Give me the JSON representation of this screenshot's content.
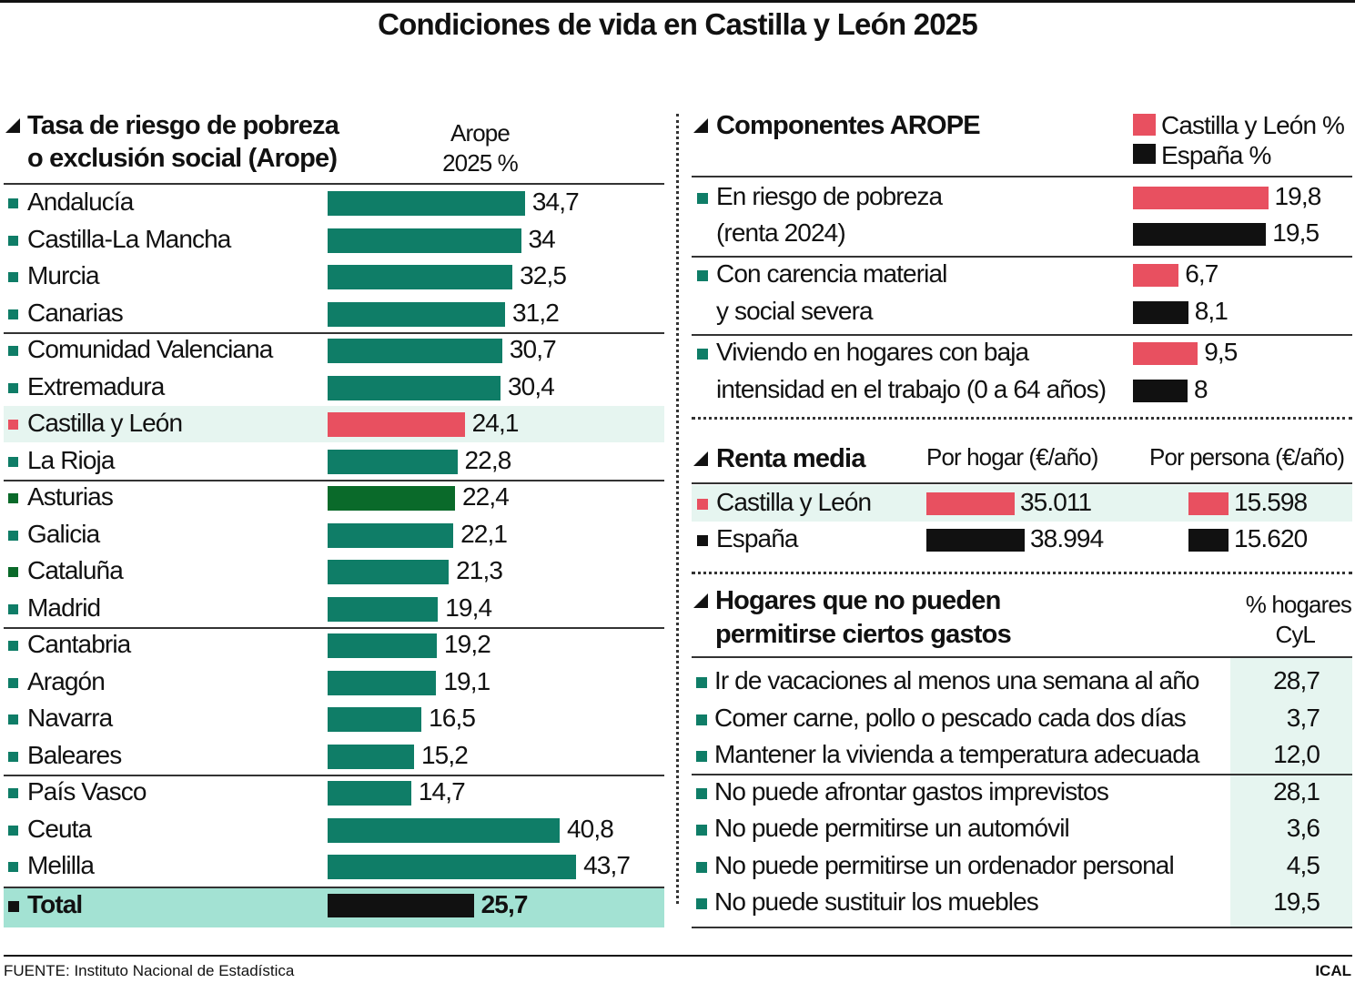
{
  "title": "Condiciones de vida en Castilla y León 2025",
  "colors": {
    "teal": "#0f7d67",
    "red": "#e85060",
    "dark_green": "#0a6a2a",
    "black": "#111111",
    "highlight": "#e6f5f0",
    "total_bg": "#a3e2d3"
  },
  "chart_data": [
    {
      "type": "bar",
      "title": "Tasa de riesgo de pobreza o exclusión social (Arope)",
      "column_header": "Arope 2025 %",
      "categories": [
        "Andalucía",
        "Castilla-La Mancha",
        "Murcia",
        "Canarias",
        "Comunidad Valenciana",
        "Extremadura",
        "Castilla y León",
        "La Rioja",
        "Asturias",
        "Galicia",
        "Cataluña",
        "Madrid",
        "Cantabria",
        "Aragón",
        "Navarra",
        "Baleares",
        "País Vasco",
        "Ceuta",
        "Melilla"
      ],
      "labels": [
        "34,7",
        "34",
        "32,5",
        "31,2",
        "30,7",
        "30,4",
        "24,1",
        "22,8",
        "22,4",
        "22,1",
        "21,3",
        "19,4",
        "19,2",
        "19,1",
        "16,5",
        "15,2",
        "14,7",
        "40,8",
        "43,7"
      ],
      "values": [
        34.7,
        34,
        32.5,
        31.2,
        30.7,
        30.4,
        24.1,
        22.8,
        22.4,
        22.1,
        21.3,
        19.4,
        19.2,
        19.1,
        16.5,
        15.2,
        14.7,
        40.8,
        43.7
      ],
      "highlight": "Castilla y León",
      "total": {
        "label": "Total",
        "value": 25.7,
        "text": "25,7"
      }
    },
    {
      "type": "bar",
      "title": "Componentes AROPE",
      "legend": [
        "Castilla y León %",
        "España %"
      ],
      "categories": [
        [
          "En riesgo de pobreza",
          "(renta 2024)"
        ],
        [
          "Con carencia material",
          "y social severa"
        ],
        [
          "Viviendo en hogares con baja",
          "intensidad en el trabajo (0 a 64 años)"
        ]
      ],
      "series": [
        {
          "name": "Castilla y León %",
          "values": [
            19.8,
            6.7,
            9.5
          ],
          "labels": [
            "19,8",
            "6,7",
            "9,5"
          ]
        },
        {
          "name": "España %",
          "values": [
            19.5,
            8.1,
            8
          ],
          "labels": [
            "19,5",
            "8,1",
            "8"
          ]
        }
      ]
    },
    {
      "type": "bar",
      "title": "Renta media",
      "columns": [
        "Por hogar (€/año)",
        "Por persona (€/año)"
      ],
      "categories": [
        "Castilla y León",
        "España"
      ],
      "por_hogar": [
        35011,
        38994
      ],
      "por_hogar_labels": [
        "35.011",
        "38.994"
      ],
      "por_persona": [
        15598,
        15620
      ],
      "por_persona_labels": [
        "15.598",
        "15.620"
      ]
    },
    {
      "type": "table",
      "title": "Hogares que no pueden permitirse ciertos gastos",
      "column_header": [
        "% hogares",
        "CyL"
      ],
      "rows": [
        [
          "Ir de vacaciones al menos una semana al año",
          "28,7"
        ],
        [
          "Comer carne, pollo o pescado cada dos días",
          "3,7"
        ],
        [
          "Mantener la vivienda a temperatura adecuada",
          "12,0"
        ],
        [
          "No puede afrontar gastos imprevistos",
          "28,1"
        ],
        [
          "No puede permitirse un automóvil",
          "3,6"
        ],
        [
          "No puede permitirse un ordenador personal",
          "4,5"
        ],
        [
          "No puede sustituir los muebles",
          "19,5"
        ]
      ]
    }
  ],
  "footer": {
    "source": "FUENTE: Instituto Nacional de Estadística",
    "brand": "ICAL"
  }
}
